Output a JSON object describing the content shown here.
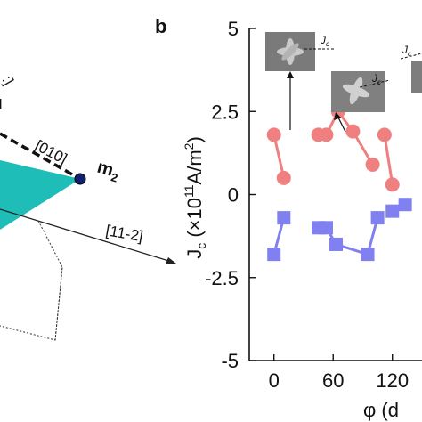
{
  "panel_left": {
    "axis_label_010": "[010]",
    "axis_label_11m2": "[11-2]",
    "moment_label": "m",
    "moment_sub": "2",
    "colors": {
      "plane": "#1fbdb8",
      "dot": "#13206b",
      "edge": "#222222"
    }
  },
  "panel_b": {
    "panel_label": "b",
    "inset_jc_label": "J",
    "inset_jc_sub": "c"
  },
  "chart_data": {
    "type": "scatter",
    "xlabel": "φ (d",
    "ylabel": "J",
    "ylabel_sub": "c",
    "ylabel_units": "(×10",
    "ylabel_exp": "11",
    "ylabel_units2": "A/m",
    "ylabel_exp2": "2",
    "ylabel_close": ")",
    "xlim": [
      -25,
      150
    ],
    "ylim": [
      -5,
      5
    ],
    "x_ticks": [
      0,
      60,
      120
    ],
    "y_ticks": [
      -5,
      -2.5,
      0,
      2.5,
      5
    ],
    "y_tick_labels": [
      "-5",
      "-2.5",
      "0",
      "2.5",
      "5"
    ],
    "x_tick_labels": [
      "0",
      "60",
      "120"
    ],
    "series": [
      {
        "marker": "circle",
        "color": "#f08080",
        "segments": [
          [
            [
              0,
              1.8
            ],
            [
              10,
              0.5
            ]
          ],
          [
            [
              45,
              1.8
            ],
            [
              53,
              1.8
            ],
            [
              65,
              2.5
            ],
            [
              80,
              1.9
            ],
            [
              100,
              0.9
            ]
          ],
          [
            [
              112,
              1.8
            ],
            [
              120,
              0.3
            ]
          ]
        ]
      },
      {
        "marker": "square",
        "color": "#8080f0",
        "segments": [
          [
            [
              0,
              -1.8
            ],
            [
              10,
              -0.7
            ]
          ],
          [
            [
              45,
              -1.0
            ],
            [
              53,
              -1.0
            ],
            [
              63,
              -1.5
            ],
            [
              95,
              -1.8
            ],
            [
              105,
              -0.7
            ]
          ],
          [
            [
              120,
              -0.5
            ],
            [
              133,
              -0.3
            ]
          ]
        ]
      }
    ]
  }
}
